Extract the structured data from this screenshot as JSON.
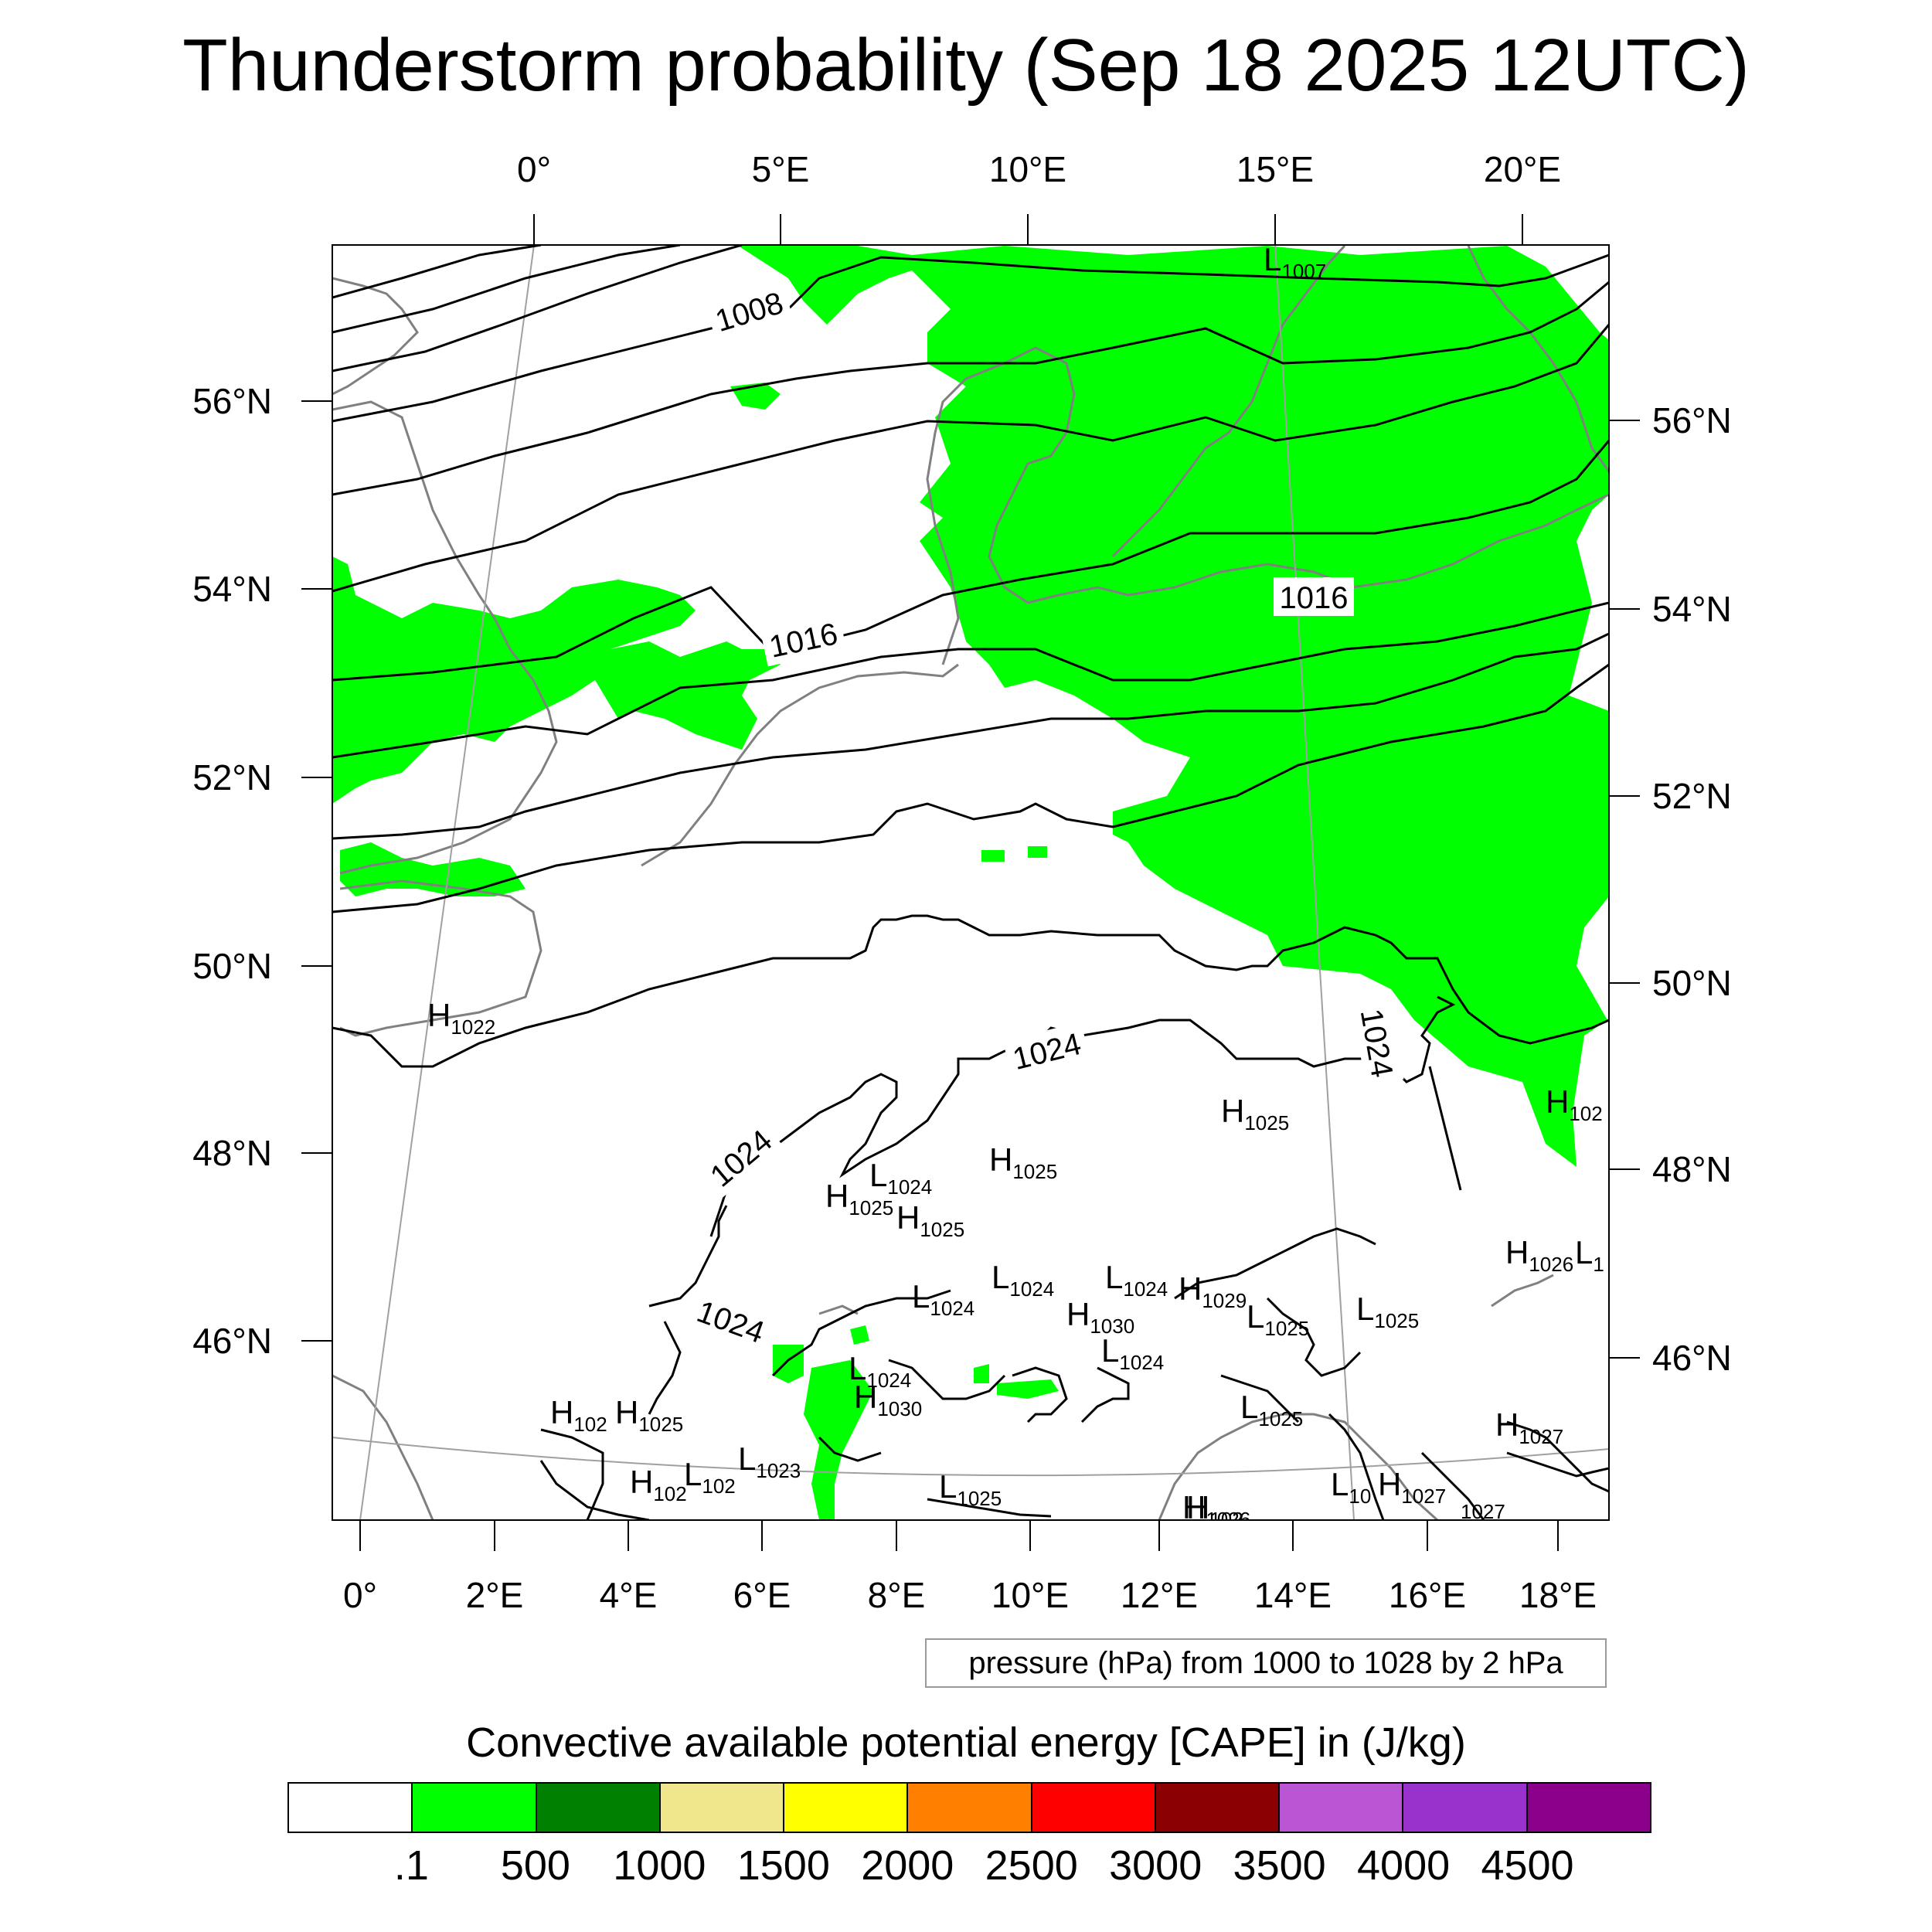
{
  "title": "Thunderstorm probability (Sep 18 2025 12UTC)",
  "map": {
    "top_lon_labels": [
      "0°",
      "5°E",
      "10°E",
      "15°E",
      "20°E"
    ],
    "bottom_lon_labels": [
      "0°",
      "2°E",
      "4°E",
      "6°E",
      "8°E",
      "10°E",
      "12°E",
      "14°E",
      "16°E",
      "18°E"
    ],
    "left_lat_labels": [
      "56°N",
      "54°N",
      "52°N",
      "50°N",
      "48°N",
      "46°N"
    ],
    "right_lat_labels": [
      "56°N",
      "54°N",
      "52°N",
      "50°N",
      "48°N",
      "46°N"
    ],
    "isobar_labels": [
      "1008",
      "1016",
      "1016",
      "1024",
      "1024",
      "1024",
      "1024",
      "1024"
    ],
    "pressure_centers": [
      {
        "type": "L",
        "value": "1007"
      },
      {
        "type": "H",
        "value": "1022"
      },
      {
        "type": "H",
        "value": "1025"
      },
      {
        "type": "H",
        "value": "102"
      },
      {
        "type": "L",
        "value": "1024"
      },
      {
        "type": "H",
        "value": "1025"
      },
      {
        "type": "H",
        "value": "1025"
      },
      {
        "type": "H",
        "value": "1025"
      },
      {
        "type": "L",
        "value": "1024"
      },
      {
        "type": "L",
        "value": "1024"
      },
      {
        "type": "L",
        "value": "1024"
      },
      {
        "type": "H",
        "value": "1029"
      },
      {
        "type": "H",
        "value": "1030"
      },
      {
        "type": "L",
        "value": "1025"
      },
      {
        "type": "L",
        "value": "1025"
      },
      {
        "type": "L",
        "value": "1024"
      },
      {
        "type": "H",
        "value": "102"
      },
      {
        "type": "H",
        "value": "1025"
      },
      {
        "type": "L",
        "value": "1024"
      },
      {
        "type": "H",
        "value": "1030"
      },
      {
        "type": "L",
        "value": "1025"
      },
      {
        "type": "H",
        "value": "102"
      },
      {
        "type": "L",
        "value": "1023"
      },
      {
        "type": "H",
        "value": "102"
      },
      {
        "type": "L",
        "value": "102"
      },
      {
        "type": "L",
        "value": "1025"
      },
      {
        "type": "L",
        "value": "10"
      },
      {
        "type": "H",
        "value": "1027"
      },
      {
        "type": "H",
        "value": "1027"
      },
      {
        "type": "H",
        "value": "1026"
      },
      {
        "type": "H",
        "value": "1026"
      },
      {
        "type": "L",
        "value": "1"
      },
      {
        "type": "",
        "value": "1027"
      }
    ],
    "colors": {
      "cape_fill": "#00ff00",
      "isobar": "#000000",
      "coastline": "#808080",
      "gridline": "#a0a0a0"
    }
  },
  "contour_note": "pressure (hPa) from 1000 to 1028 by 2 hPa",
  "legend": {
    "title": "Convective available potential energy [CAPE] in (J/kg)",
    "colors": [
      "#ffffff",
      "#00ff00",
      "#008000",
      "#f0e68c",
      "#ffff00",
      "#ff8000",
      "#ff0000",
      "#8b0000",
      "#ba55d3",
      "#9932cc",
      "#8b008b"
    ],
    "labels": [
      ".1",
      "500",
      "1000",
      "1500",
      "2000",
      "2500",
      "3000",
      "3500",
      "4000",
      "4500"
    ]
  }
}
